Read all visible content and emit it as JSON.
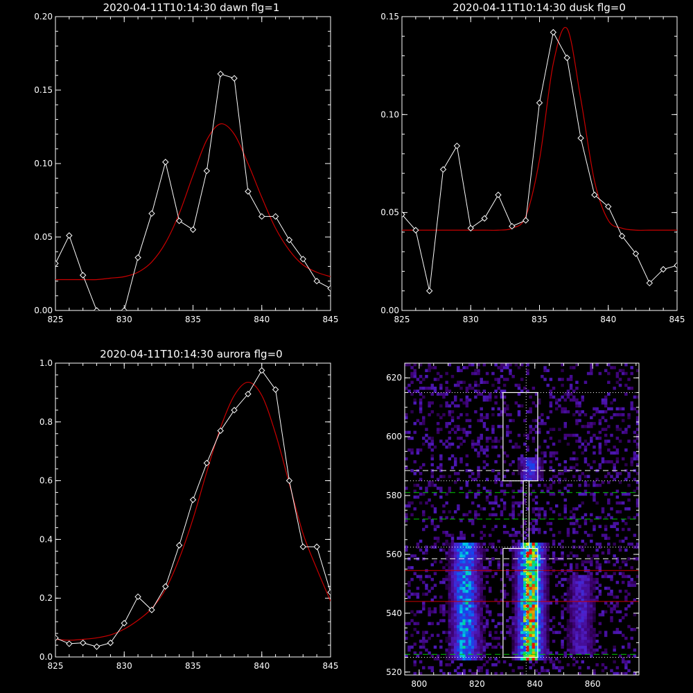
{
  "colors": {
    "background": "#000000",
    "axes": "#ffffff",
    "data_line": "#ffffff",
    "fit_line": "#cc0000",
    "box": "#ffffff",
    "guide_white": "#ffffff",
    "guide_green": "#00cc00",
    "guide_red": "#cc0000"
  },
  "chart_data": [
    {
      "type": "line",
      "title": "2020-04-11T10:14:30 dawn flg=1",
      "xlim": [
        825,
        845
      ],
      "ylim": [
        0,
        0.2
      ],
      "x_ticks": [
        "825",
        "830",
        "835",
        "840",
        "845"
      ],
      "y_ticks": [
        "0.00",
        "0.05",
        "0.10",
        "0.15",
        "0.20"
      ],
      "x": [
        825,
        826,
        827,
        828,
        829,
        830,
        831,
        832,
        833,
        834,
        835,
        836,
        837,
        838,
        839,
        840,
        841,
        842,
        843,
        844,
        845
      ],
      "series": [
        {
          "role": "data",
          "marker": "diamond",
          "values": [
            0.032,
            0.051,
            0.024,
            0.0,
            -0.002,
            0.0,
            0.036,
            0.066,
            0.101,
            0.061,
            0.055,
            0.095,
            0.161,
            0.158,
            0.081,
            0.064,
            0.064,
            0.048,
            0.035,
            0.02,
            0.015
          ]
        },
        {
          "role": "fit",
          "values": [
            0.021,
            0.021,
            0.021,
            0.021,
            0.022,
            0.023,
            0.026,
            0.033,
            0.046,
            0.066,
            0.092,
            0.116,
            0.127,
            0.12,
            0.1,
            0.077,
            0.056,
            0.041,
            0.031,
            0.026,
            0.023
          ]
        }
      ]
    },
    {
      "type": "line",
      "title": "2020-04-11T10:14:30 dusk flg=0",
      "xlim": [
        825,
        845
      ],
      "ylim": [
        0,
        0.15
      ],
      "x_ticks": [
        "825",
        "830",
        "835",
        "840",
        "845"
      ],
      "y_ticks": [
        "0.00",
        "0.05",
        "0.10",
        "0.15"
      ],
      "x": [
        825,
        826,
        827,
        828,
        829,
        830,
        831,
        832,
        833,
        834,
        835,
        836,
        837,
        838,
        839,
        840,
        841,
        842,
        843,
        844,
        845
      ],
      "series": [
        {
          "role": "data",
          "marker": "diamond",
          "values": [
            0.049,
            0.041,
            0.01,
            0.072,
            0.084,
            0.042,
            0.047,
            0.059,
            0.043,
            0.046,
            0.106,
            0.142,
            0.129,
            0.088,
            0.059,
            0.053,
            0.038,
            0.029,
            0.014,
            0.021,
            0.023
          ]
        },
        {
          "role": "fit",
          "values": [
            0.041,
            0.041,
            0.041,
            0.041,
            0.041,
            0.041,
            0.041,
            0.041,
            0.042,
            0.048,
            0.077,
            0.126,
            0.144,
            0.108,
            0.066,
            0.046,
            0.042,
            0.041,
            0.041,
            0.041,
            0.041
          ]
        }
      ]
    },
    {
      "type": "line",
      "title": "2020-04-11T10:14:30 aurora flg=0",
      "xlim": [
        825,
        845
      ],
      "ylim": [
        0,
        1.0
      ],
      "x_ticks": [
        "825",
        "830",
        "835",
        "840",
        "845"
      ],
      "y_ticks": [
        "0.0",
        "0.2",
        "0.4",
        "0.6",
        "0.8",
        "1.0"
      ],
      "x": [
        825,
        826,
        827,
        828,
        829,
        830,
        831,
        832,
        833,
        834,
        835,
        836,
        837,
        838,
        839,
        840,
        841,
        842,
        843,
        844,
        845
      ],
      "series": [
        {
          "role": "data",
          "marker": "diamond",
          "values": [
            0.065,
            0.045,
            0.048,
            0.035,
            0.048,
            0.115,
            0.205,
            0.16,
            0.24,
            0.38,
            0.535,
            0.66,
            0.77,
            0.84,
            0.895,
            0.975,
            0.91,
            0.6,
            0.375,
            0.375,
            0.22
          ]
        },
        {
          "role": "fit",
          "values": [
            0.06,
            0.057,
            0.06,
            0.065,
            0.075,
            0.095,
            0.125,
            0.165,
            0.23,
            0.335,
            0.47,
            0.63,
            0.78,
            0.89,
            0.935,
            0.89,
            0.76,
            0.59,
            0.42,
            0.3,
            0.19
          ]
        }
      ]
    },
    {
      "type": "heatmap",
      "xlim": [
        795,
        876
      ],
      "ylim": [
        519,
        625
      ],
      "x_ticks": [
        "800",
        "820",
        "840",
        "860"
      ],
      "y_ticks": [
        "520",
        "540",
        "560",
        "580",
        "600",
        "620"
      ],
      "boxes": [
        {
          "x": [
            829,
            841
          ],
          "y": [
            585,
            615
          ]
        },
        {
          "x": [
            829,
            841
          ],
          "y": [
            525,
            562
          ]
        },
        {
          "x": [
            836,
            838
          ],
          "y": [
            562,
            585
          ]
        }
      ],
      "vlines": [
        {
          "x": 837,
          "style": "dotted",
          "color_key": "guide_white"
        }
      ],
      "hlines": [
        {
          "y": 615,
          "style": "dotted",
          "color_key": "guide_white"
        },
        {
          "y": 588.5,
          "style": "dashed",
          "color_key": "guide_white"
        },
        {
          "y": 585,
          "style": "dotted",
          "color_key": "guide_white"
        },
        {
          "y": 581,
          "style": "dashed",
          "color_key": "guide_green"
        },
        {
          "y": 572,
          "style": "dashed",
          "color_key": "guide_green"
        },
        {
          "y": 562.5,
          "style": "dotted",
          "color_key": "guide_white"
        },
        {
          "y": 558.5,
          "style": "dashed",
          "color_key": "guide_white"
        },
        {
          "y": 554.5,
          "style": "solid",
          "color_key": "guide_red"
        },
        {
          "y": 544,
          "style": "solid",
          "color_key": "guide_red"
        },
        {
          "y": 526,
          "style": "dashed",
          "color_key": "guide_green"
        },
        {
          "y": 525,
          "style": "dotted",
          "color_key": "guide_white"
        }
      ],
      "bands": [
        {
          "x_center": 838.5,
          "x_width": 5.0,
          "y_range": [
            524,
            563
          ],
          "peak": 1.0
        },
        {
          "x_center": 816.0,
          "x_width": 5.5,
          "y_range": [
            524,
            563
          ],
          "peak": 0.6
        },
        {
          "x_center": 838.5,
          "x_width": 4.0,
          "y_range": [
            585,
            592
          ],
          "peak": 0.45
        },
        {
          "x_center": 856.0,
          "x_width": 5.0,
          "y_range": [
            526,
            552
          ],
          "peak": 0.3
        }
      ]
    }
  ]
}
